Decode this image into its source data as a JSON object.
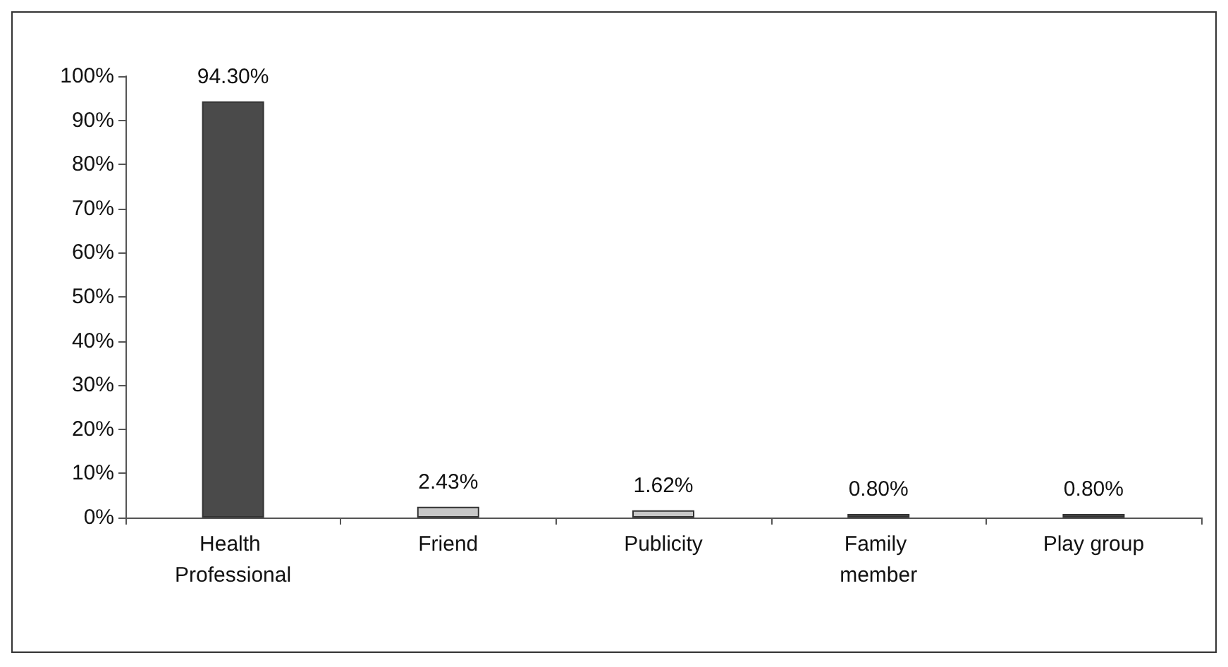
{
  "chart_data": {
    "type": "bar",
    "categories": [
      "Health Professional",
      "Friend",
      "Publicity",
      "Family member",
      "Play group"
    ],
    "values": [
      94.3,
      2.43,
      1.62,
      0.8,
      0.8
    ],
    "value_labels": [
      "94.30%",
      "2.43%",
      "1.62%",
      "0.80%",
      "0.80%"
    ],
    "colors": [
      "#4a4a4a",
      "#c8c8c8",
      "#c8c8c8",
      "#4a4a4a",
      "#4a4a4a"
    ],
    "ylim": [
      0,
      100
    ],
    "yticks": [
      {
        "value": 0,
        "label": "0%"
      },
      {
        "value": 10,
        "label": "10%"
      },
      {
        "value": 20,
        "label": "20%"
      },
      {
        "value": 30,
        "label": "30%"
      },
      {
        "value": 40,
        "label": "40%"
      },
      {
        "value": 50,
        "label": "50%"
      },
      {
        "value": 60,
        "label": "60%"
      },
      {
        "value": 70,
        "label": "70%"
      },
      {
        "value": 80,
        "label": "80%"
      },
      {
        "value": 90,
        "label": "90%"
      },
      {
        "value": 100,
        "label": "100%"
      }
    ],
    "grid": false
  }
}
